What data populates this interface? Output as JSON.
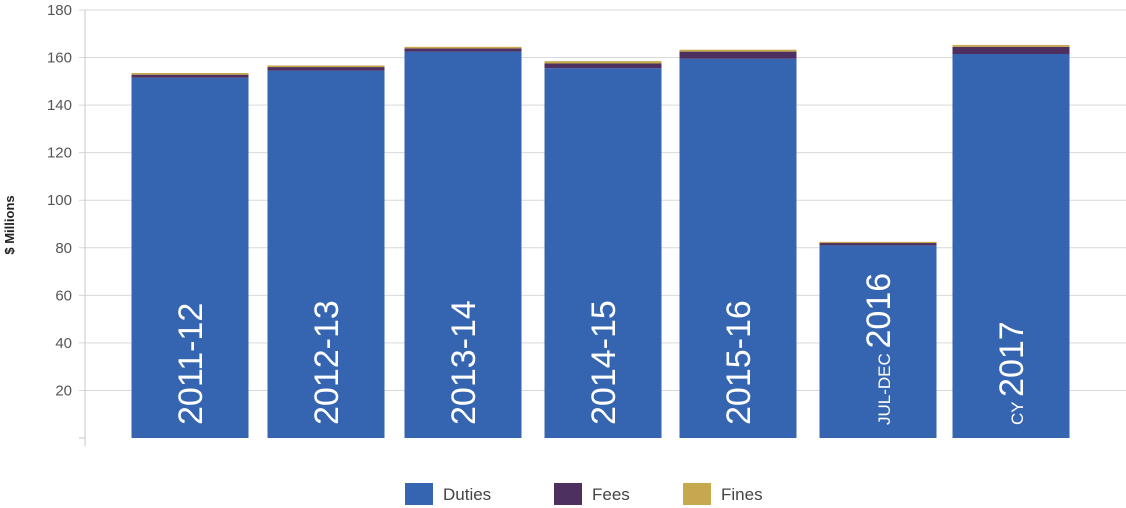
{
  "chart_data": {
    "type": "bar",
    "stacked": true,
    "ylabel": "$ Millions",
    "ylim": [
      0,
      180
    ],
    "yticks": [
      20,
      40,
      60,
      80,
      100,
      120,
      140,
      160,
      180
    ],
    "grid": true,
    "legend_position": "bottom",
    "categories": [
      {
        "prefix": "",
        "label": "2011-12"
      },
      {
        "prefix": "",
        "label": "2012-13"
      },
      {
        "prefix": "",
        "label": "2013-14"
      },
      {
        "prefix": "",
        "label": "2014-15"
      },
      {
        "prefix": "",
        "label": "2015-16"
      },
      {
        "prefix": "JUL-DEC",
        "label": "2016"
      },
      {
        "prefix": "CY",
        "label": "2017"
      }
    ],
    "series": [
      {
        "name": "Duties",
        "color": "#3565b1",
        "values": [
          151.5,
          154.5,
          162.5,
          155.5,
          159.5,
          81,
          161.5
        ]
      },
      {
        "name": "Fees",
        "color": "#4e3060",
        "values": [
          1.3,
          1.5,
          1.3,
          2.0,
          3.0,
          1.0,
          3.0
        ]
      },
      {
        "name": "Fines",
        "color": "#c6a94e",
        "values": [
          0.7,
          0.7,
          0.7,
          1.0,
          0.8,
          0.5,
          0.8
        ]
      }
    ]
  }
}
